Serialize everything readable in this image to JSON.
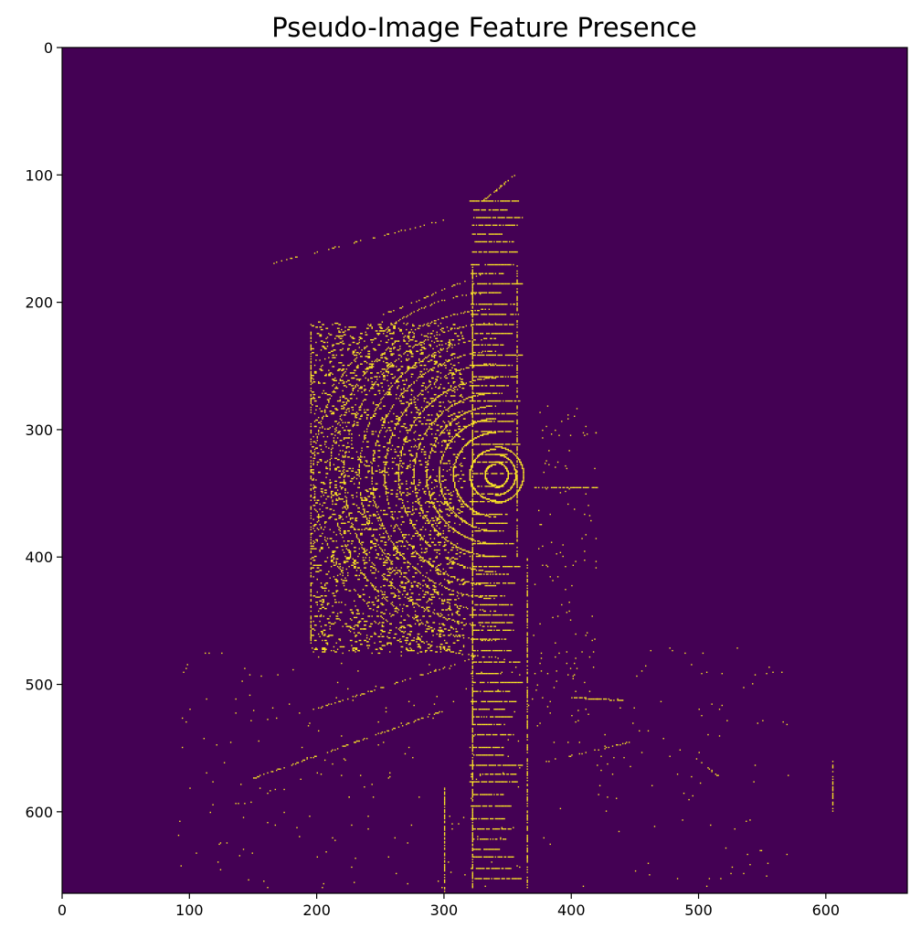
{
  "chart_data": {
    "type": "heatmap",
    "title": "Pseudo-Image Feature Presence",
    "xlabel": "",
    "ylabel": "",
    "xlim": [
      0,
      664
    ],
    "ylim": [
      664,
      0
    ],
    "x_ticks": [
      0,
      100,
      200,
      300,
      400,
      500,
      600
    ],
    "y_ticks": [
      0,
      100,
      200,
      300,
      400,
      500,
      600
    ],
    "origin": "upper",
    "colormap": "viridis",
    "colors": {
      "absent": "#440154",
      "present": "#fde725"
    },
    "values_description": "binary",
    "grid": false,
    "legend": "none"
  }
}
